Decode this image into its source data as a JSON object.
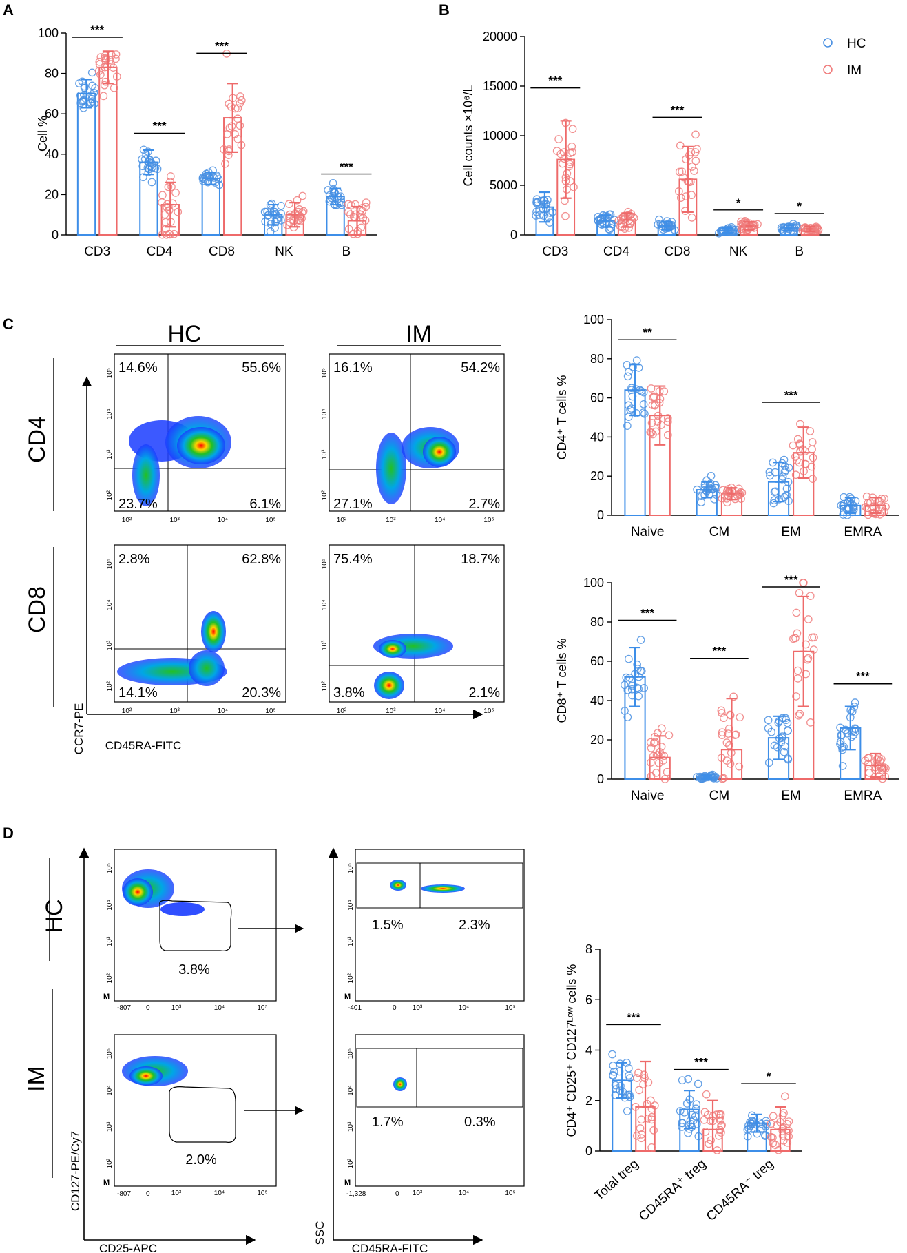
{
  "panels": {
    "a": "A",
    "b": "B",
    "c": "C",
    "d": "D"
  },
  "colors": {
    "hc": "#4a90e2",
    "im": "#f07c7c",
    "bar_hc": "#3d8ee8",
    "bar_im": "#ee6a6a"
  },
  "legend": {
    "hc": "HC",
    "im": "IM"
  },
  "chart_data": [
    {
      "id": "A",
      "type": "bar",
      "title": "",
      "ylabel": "Cell %",
      "ylim": [
        0,
        100
      ],
      "yticks": [
        0,
        20,
        40,
        60,
        80,
        100
      ],
      "categories": [
        "CD3",
        "CD4",
        "CD8",
        "NK",
        "B"
      ],
      "series": [
        {
          "name": "HC",
          "values": [
            70,
            36,
            28,
            10,
            19
          ],
          "sd": [
            7,
            6,
            3,
            5,
            4
          ]
        },
        {
          "name": "IM",
          "values": [
            83,
            15,
            58,
            10,
            7
          ],
          "sd": [
            8,
            11,
            17,
            6,
            7
          ]
        }
      ],
      "significance": [
        "***",
        "***",
        "***",
        "",
        "***"
      ]
    },
    {
      "id": "B",
      "type": "bar",
      "title": "",
      "ylabel": "Cell counts ×10⁶/L",
      "ylim": [
        0,
        20000
      ],
      "yticks": [
        0,
        5000,
        10000,
        15000,
        20000
      ],
      "categories": [
        "CD3",
        "CD4",
        "CD8",
        "NK",
        "B"
      ],
      "series": [
        {
          "name": "HC",
          "values": [
            2800,
            1400,
            900,
            450,
            700
          ],
          "sd": [
            1500,
            600,
            400,
            250,
            300
          ]
        },
        {
          "name": "IM",
          "values": [
            7600,
            1500,
            5600,
            900,
            600
          ],
          "sd": [
            3900,
            700,
            3300,
            400,
            250
          ]
        }
      ],
      "significance": [
        "***",
        "",
        "***",
        "*",
        "*"
      ]
    },
    {
      "id": "C-CD4",
      "type": "bar",
      "title": "",
      "ylabel": "CD4⁺ T cells %",
      "ylim": [
        0,
        100
      ],
      "yticks": [
        0,
        20,
        40,
        60,
        80,
        100
      ],
      "categories": [
        "Naive",
        "CM",
        "EM",
        "EMRA"
      ],
      "series": [
        {
          "name": "HC",
          "values": [
            64,
            13,
            17,
            5
          ],
          "sd": [
            13,
            4,
            10,
            4
          ]
        },
        {
          "name": "IM",
          "values": [
            51,
            11,
            32,
            5
          ],
          "sd": [
            15,
            3,
            13,
            4
          ]
        }
      ],
      "significance": [
        "**",
        "",
        "***",
        ""
      ]
    },
    {
      "id": "C-CD8",
      "type": "bar",
      "title": "",
      "ylabel": "CD8⁺ T cells %",
      "ylim": [
        0,
        100
      ],
      "yticks": [
        0,
        20,
        40,
        60,
        80,
        100
      ],
      "categories": [
        "Naive",
        "CM",
        "EM",
        "EMRA"
      ],
      "series": [
        {
          "name": "HC",
          "values": [
            52,
            1,
            21,
            26
          ],
          "sd": [
            15,
            1,
            11,
            11
          ]
        },
        {
          "name": "IM",
          "values": [
            11,
            15,
            65,
            7
          ],
          "sd": [
            11,
            26,
            28,
            6
          ]
        }
      ],
      "significance": [
        "***",
        "***",
        "***",
        "***"
      ]
    },
    {
      "id": "D",
      "type": "bar",
      "title": "",
      "ylabel": "CD4⁺ CD25⁺ CD127ᴸᵒʷ cells %",
      "ylim": [
        0,
        8
      ],
      "yticks": [
        0,
        2,
        4,
        6,
        8
      ],
      "categories": [
        "Total treg",
        "CD45RA⁺ treg",
        "CD45RA⁻ treg"
      ],
      "series": [
        {
          "name": "HC",
          "values": [
            2.8,
            1.65,
            1.1
          ],
          "sd": [
            0.7,
            0.75,
            0.35
          ]
        },
        {
          "name": "IM",
          "values": [
            1.75,
            0.85,
            0.85
          ],
          "sd": [
            1.8,
            1.15,
            0.9
          ]
        }
      ],
      "significance": [
        "***",
        "***",
        "*"
      ]
    }
  ],
  "flow": {
    "col_hc": "HC",
    "col_im": "IM",
    "row_cd4": "CD4",
    "row_cd8": "CD8",
    "ylabel": "CCR7-PE",
    "xlabel": "CD45RA-FITC",
    "tick_exp": [
      "10²",
      "10³",
      "10⁴",
      "10⁵"
    ],
    "hc_cd4": [
      "14.6%",
      "55.6%",
      "23.7%",
      "6.1%"
    ],
    "im_cd4": [
      "16.1%",
      "54.2%",
      "27.1%",
      "2.7%"
    ],
    "hc_cd8": [
      "2.8%",
      "62.8%",
      "14.1%",
      "20.3%"
    ],
    "im_cd8": [
      "75.4%",
      "18.7%",
      "3.8%",
      "2.1%"
    ]
  },
  "treg_flow": {
    "row_hc": "HC",
    "row_im": "IM",
    "ylabel1": "CD127-PE/Cy7",
    "xlabel1": "CD25-APC",
    "ylabel2": "SSC",
    "xlabel2": "CD45RA-FITC",
    "hc_gate": "3.8%",
    "im_gate": "2.0%",
    "hc_split": [
      "1.5%",
      "2.3%"
    ],
    "im_split": [
      "1.7%",
      "0.3%"
    ],
    "m_mark": "M",
    "xmin_hc1": "-807",
    "xmin_hc2": "-401",
    "xmin_im1": "-807",
    "xmin_im2": "-1,328",
    "tick0": "0"
  }
}
